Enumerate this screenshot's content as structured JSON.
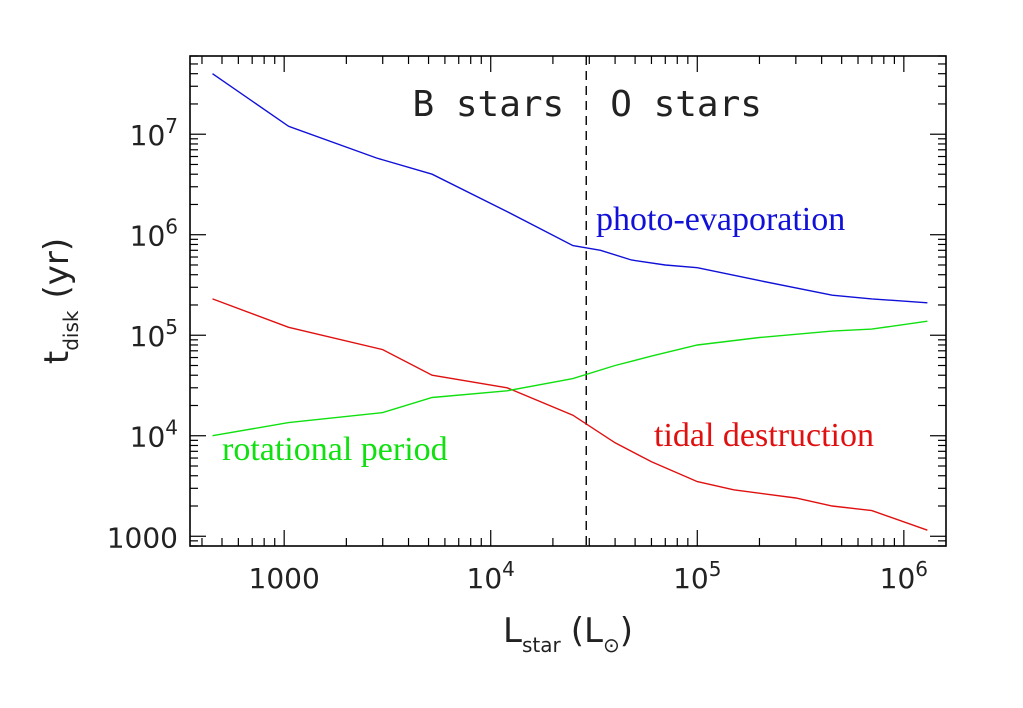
{
  "chart_data": {
    "type": "line",
    "xscale": "log",
    "yscale": "log",
    "xlim": [
      350,
      1600000
    ],
    "ylim": [
      800,
      60000000
    ],
    "xlabel": {
      "main": "L",
      "sub": "star",
      "unit_open": "(L",
      "unit_sub": "⊙",
      "unit_close": ")"
    },
    "ylabel": {
      "main": "t",
      "sub": "disk",
      "unit": "(yr)"
    },
    "xticks": [
      {
        "value": 1000,
        "label": "1000"
      },
      {
        "value": 10000,
        "base": "10",
        "exp": "4"
      },
      {
        "value": 100000,
        "base": "10",
        "exp": "5"
      },
      {
        "value": 1000000,
        "base": "10",
        "exp": "6"
      }
    ],
    "yticks": [
      {
        "value": 1000,
        "label": "1000"
      },
      {
        "value": 10000,
        "base": "10",
        "exp": "4"
      },
      {
        "value": 100000,
        "base": "10",
        "exp": "5"
      },
      {
        "value": 1000000,
        "base": "10",
        "exp": "6"
      },
      {
        "value": 10000000,
        "base": "10",
        "exp": "7"
      }
    ],
    "divider": {
      "x": 29000,
      "style": "dashed"
    },
    "region_labels": {
      "left": "B stars",
      "right": "O stars"
    },
    "series": [
      {
        "name": "photo-evaporation",
        "color": "#1010d8",
        "points": [
          [
            450,
            40000000
          ],
          [
            1050,
            12000000
          ],
          [
            2800,
            5800000
          ],
          [
            5200,
            4000000
          ],
          [
            12000,
            1700000
          ],
          [
            25000,
            780000
          ],
          [
            34000,
            700000
          ],
          [
            48000,
            560000
          ],
          [
            70000,
            500000
          ],
          [
            100000,
            470000
          ],
          [
            200000,
            350000
          ],
          [
            450000,
            250000
          ],
          [
            700000,
            230000
          ],
          [
            1300000,
            210000
          ]
        ]
      },
      {
        "name": "tidal destruction",
        "color": "#e01010",
        "points": [
          [
            450,
            230000
          ],
          [
            1050,
            120000
          ],
          [
            3000,
            72000
          ],
          [
            5200,
            40000
          ],
          [
            12000,
            30000
          ],
          [
            25000,
            16000
          ],
          [
            40000,
            8500
          ],
          [
            60000,
            5500
          ],
          [
            100000,
            3500
          ],
          [
            150000,
            2900
          ],
          [
            300000,
            2400
          ],
          [
            450000,
            2000
          ],
          [
            700000,
            1800
          ],
          [
            1300000,
            1150
          ]
        ]
      },
      {
        "name": "rotational period",
        "color": "#10e010",
        "points": [
          [
            450,
            10000
          ],
          [
            1050,
            13500
          ],
          [
            3000,
            17000
          ],
          [
            5200,
            24000
          ],
          [
            12000,
            28000
          ],
          [
            25000,
            37000
          ],
          [
            40000,
            50000
          ],
          [
            60000,
            62000
          ],
          [
            100000,
            80000
          ],
          [
            200000,
            95000
          ],
          [
            450000,
            110000
          ],
          [
            700000,
            115000
          ],
          [
            1300000,
            138000
          ]
        ]
      }
    ]
  }
}
